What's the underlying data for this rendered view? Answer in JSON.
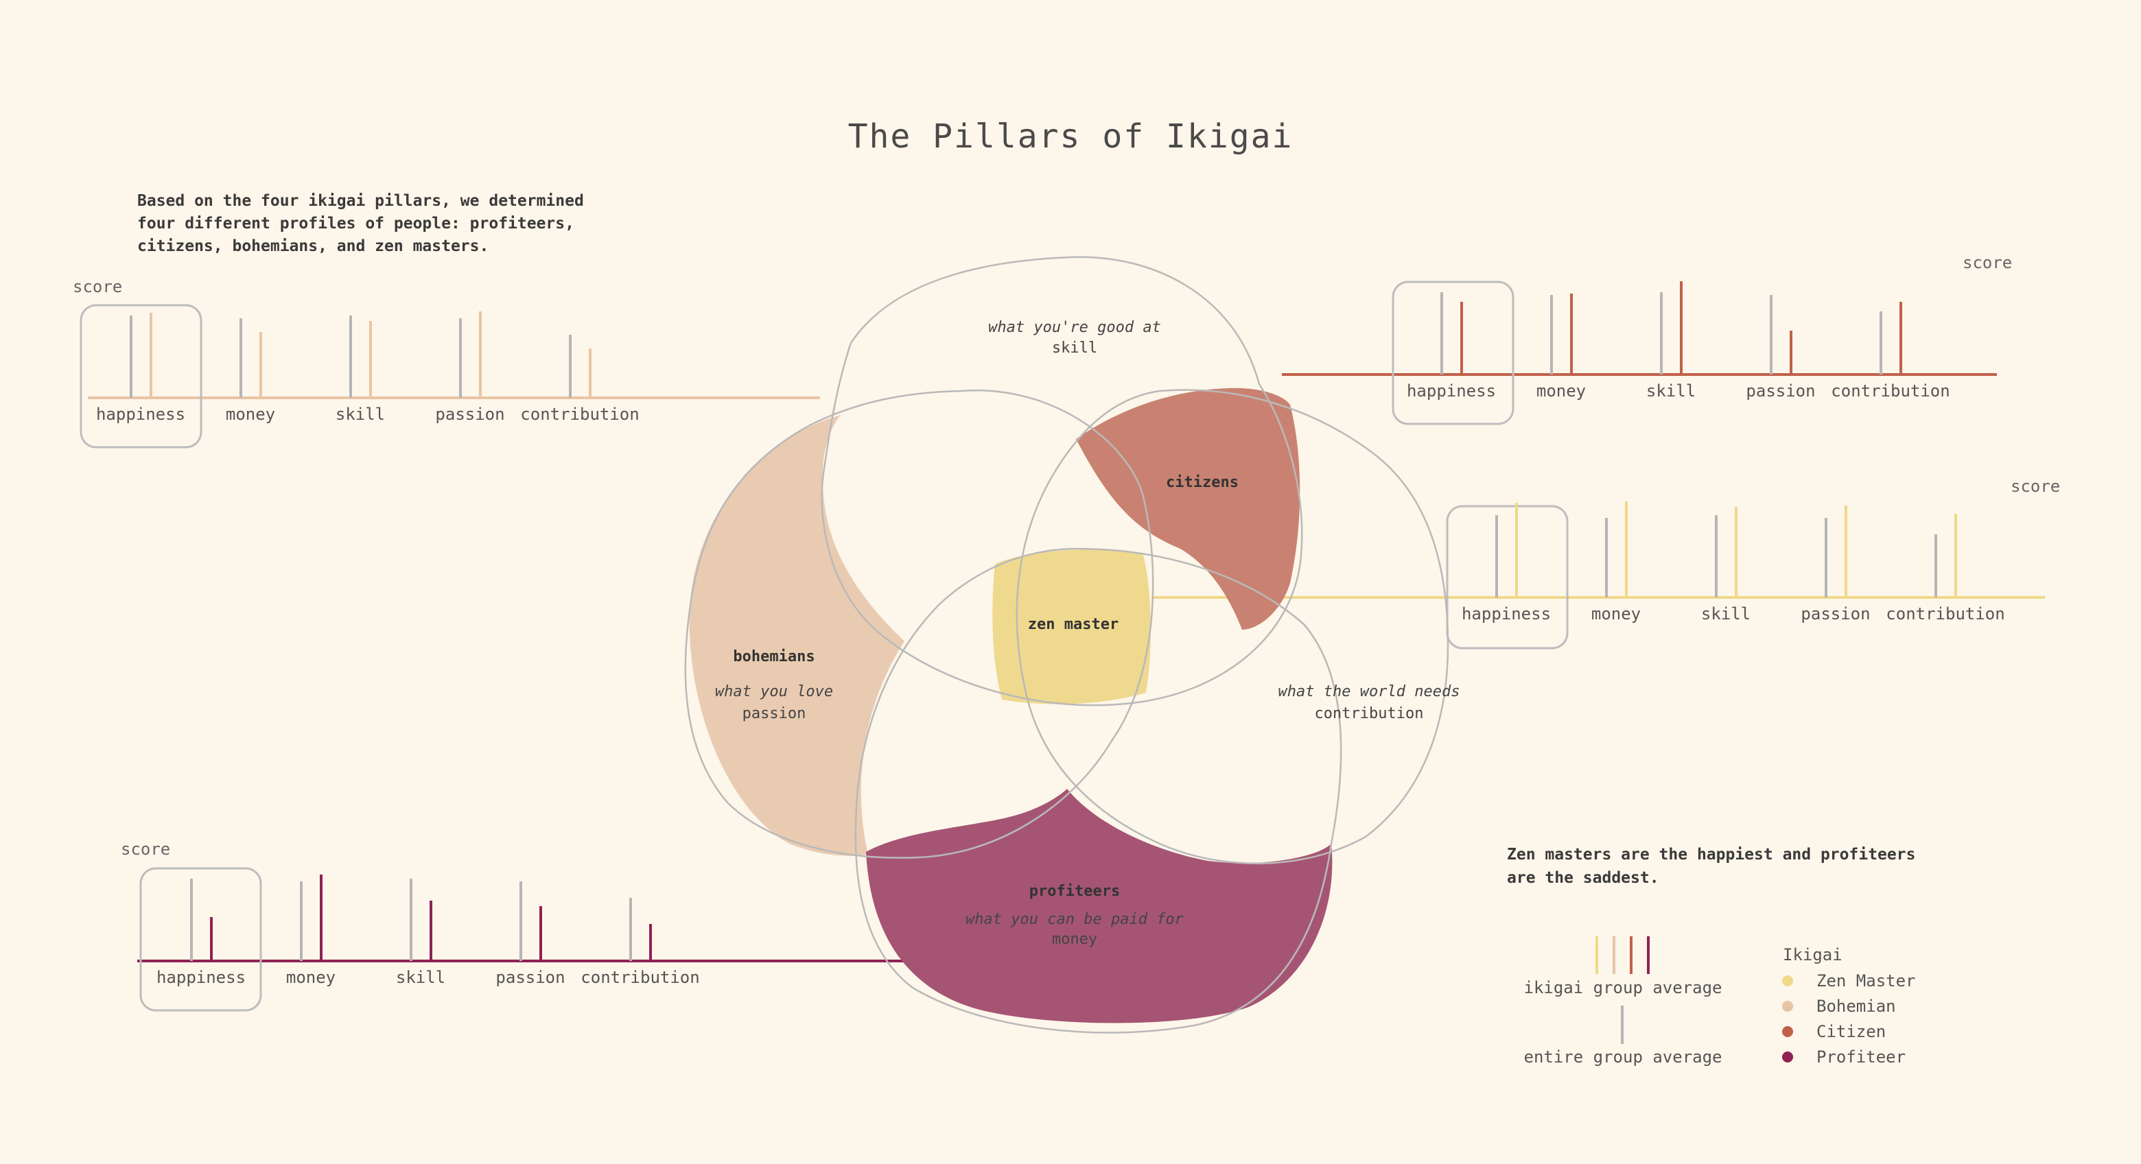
{
  "title": "The Pillars of Ikigai",
  "intro": {
    "lines": [
      "Based on the four ikigai pillars, we determined",
      "four different profiles of people: profiteers,",
      "citizens, bohemians, and zen masters."
    ]
  },
  "conclusion": {
    "lines": [
      "Zen masters are the happiest and profiteers",
      "are the saddest."
    ]
  },
  "venn": {
    "skill_title": "what you're good at",
    "skill_sub": "skill",
    "passion_title": "what you love",
    "passion_sub": "passion",
    "contribution_title": "what the world needs",
    "contribution_sub": "contribution",
    "money_title": "what you can be paid for",
    "money_sub": "money",
    "bohemians": "bohemians",
    "citizens": "citizens",
    "zen": "zen master",
    "profiteers": "profiteers"
  },
  "legend": {
    "group_avg_label": "ikigai group average",
    "entire_avg_label": "entire group average",
    "title": "Ikigai",
    "items": [
      {
        "label": "Zen Master",
        "color": "#efd98a"
      },
      {
        "label": "Bohemian",
        "color": "#e6c4a6"
      },
      {
        "label": "Citizen",
        "color": "#c1604a"
      },
      {
        "label": "Profiteer",
        "color": "#8f2155"
      }
    ]
  },
  "chart_data": [
    {
      "type": "bar",
      "profile": "Bohemian",
      "color": "#e9c5a5",
      "ylabel": "score",
      "highlight": "happiness",
      "categories": [
        "happiness",
        "money",
        "skill",
        "passion",
        "contribution"
      ],
      "series": [
        {
          "name": "entire group average",
          "color": "#b5b5b5",
          "values": [
            0.6,
            0.58,
            0.6,
            0.58,
            0.46
          ]
        },
        {
          "name": "ikigai group average",
          "color": "#e9c5a5",
          "values": [
            0.62,
            0.48,
            0.56,
            0.63,
            0.36
          ]
        }
      ]
    },
    {
      "type": "bar",
      "profile": "Citizen",
      "color": "#c1604a",
      "ylabel": "score",
      "highlight": "happiness",
      "categories": [
        "happiness",
        "money",
        "skill",
        "passion",
        "contribution"
      ],
      "series": [
        {
          "name": "entire group average",
          "color": "#b5b5b5",
          "values": [
            0.6,
            0.58,
            0.6,
            0.58,
            0.46
          ]
        },
        {
          "name": "ikigai group average",
          "color": "#c1604a",
          "values": [
            0.53,
            0.59,
            0.68,
            0.32,
            0.53
          ]
        }
      ]
    },
    {
      "type": "bar",
      "profile": "Zen Master",
      "color": "#efd98a",
      "ylabel": "score",
      "highlight": "happiness",
      "categories": [
        "happiness",
        "money",
        "skill",
        "passion",
        "contribution"
      ],
      "series": [
        {
          "name": "entire group average",
          "color": "#b5b5b5",
          "values": [
            0.6,
            0.58,
            0.6,
            0.58,
            0.46
          ]
        },
        {
          "name": "ikigai group average",
          "color": "#efd98a",
          "values": [
            0.69,
            0.7,
            0.66,
            0.67,
            0.61
          ]
        }
      ]
    },
    {
      "type": "bar",
      "profile": "Profiteer",
      "color": "#8f2155",
      "ylabel": "score",
      "highlight": "happiness",
      "categories": [
        "happiness",
        "money",
        "skill",
        "passion",
        "contribution"
      ],
      "series": [
        {
          "name": "entire group average",
          "color": "#b5b5b5",
          "values": [
            0.6,
            0.58,
            0.6,
            0.58,
            0.46
          ]
        },
        {
          "name": "ikigai group average",
          "color": "#8f2155",
          "values": [
            0.32,
            0.63,
            0.44,
            0.4,
            0.27
          ]
        }
      ]
    }
  ]
}
